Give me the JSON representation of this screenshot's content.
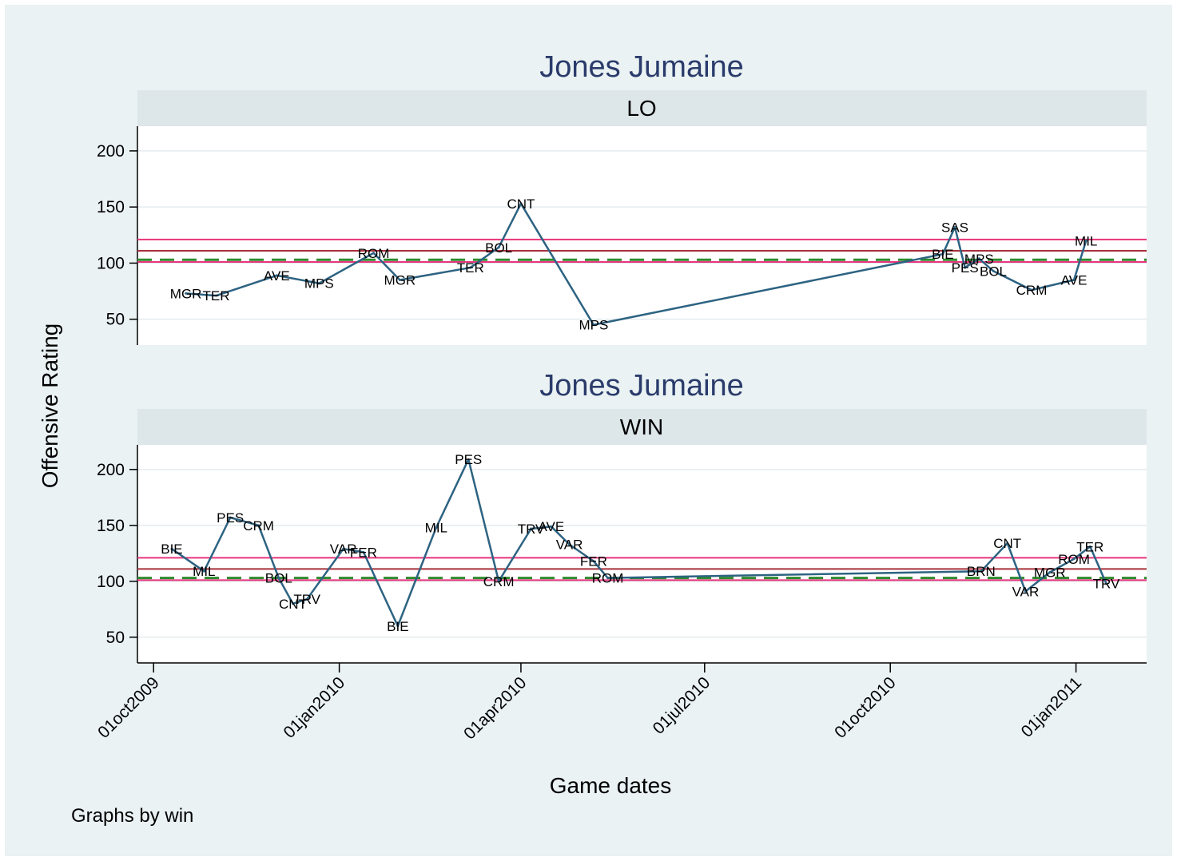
{
  "chart_data": {
    "type": "line",
    "ylabel": "Offensive Rating",
    "xlabel": "Game dates",
    "note": "Graphs by win",
    "x_ticks": [
      "01oct2009",
      "01jan2010",
      "01apr2010",
      "01jul2010",
      "01oct2010",
      "01jan2011"
    ],
    "x_range": [
      "2009-09-23",
      "2011-02-05"
    ],
    "ylim": [
      27,
      222
    ],
    "y_ticks": [
      50,
      100,
      150,
      200
    ],
    "grid": "horizontal",
    "colors": {
      "background": "#eaf2f3",
      "plot_bg": "#ffffff",
      "strip_bg": "#dde6e9",
      "title": "#2a3b6b",
      "line": "#2d6382",
      "mean_line": "#a8303c",
      "band_line": "#e8357c",
      "avg_line": "#2e8b2e"
    },
    "panels": [
      {
        "title": "Jones Jumaine",
        "strip": "LO",
        "reference_lines": {
          "mean": 111,
          "upper": 121,
          "lower": 101,
          "average": 103
        },
        "points": [
          {
            "date": "2009-10-17",
            "y": 73,
            "label": "MGR"
          },
          {
            "date": "2009-11-01",
            "y": 71,
            "label": "TER"
          },
          {
            "date": "2009-12-01",
            "y": 89,
            "label": "AVE"
          },
          {
            "date": "2009-12-22",
            "y": 82,
            "label": "MPS"
          },
          {
            "date": "2010-01-18",
            "y": 109,
            "label": "ROM"
          },
          {
            "date": "2010-01-31",
            "y": 85,
            "label": "MGR"
          },
          {
            "date": "2010-03-07",
            "y": 96,
            "label": "TER"
          },
          {
            "date": "2010-03-21",
            "y": 114,
            "label": "BOL"
          },
          {
            "date": "2010-04-01",
            "y": 153,
            "label": "CNT"
          },
          {
            "date": "2010-05-07",
            "y": 45,
            "label": "MPS"
          },
          {
            "date": "2010-10-27",
            "y": 108,
            "label": "BIE"
          },
          {
            "date": "2010-11-02",
            "y": 132,
            "label": "SAS"
          },
          {
            "date": "2010-11-07",
            "y": 96,
            "label": "PES"
          },
          {
            "date": "2010-11-14",
            "y": 104,
            "label": "MPS"
          },
          {
            "date": "2010-11-21",
            "y": 93,
            "label": "BOL"
          },
          {
            "date": "2010-12-10",
            "y": 76,
            "label": "CRM"
          },
          {
            "date": "2010-12-31",
            "y": 85,
            "label": "AVE"
          },
          {
            "date": "2011-01-06",
            "y": 120,
            "label": "MIL"
          }
        ]
      },
      {
        "title": "Jones Jumaine",
        "strip": "WIN",
        "reference_lines": {
          "mean": 111,
          "upper": 121,
          "lower": 101,
          "average": 103
        },
        "points": [
          {
            "date": "2009-10-10",
            "y": 129,
            "label": "BIE"
          },
          {
            "date": "2009-10-26",
            "y": 109,
            "label": "MIL"
          },
          {
            "date": "2009-11-08",
            "y": 157,
            "label": "PES"
          },
          {
            "date": "2009-11-22",
            "y": 150,
            "label": "CRM"
          },
          {
            "date": "2009-12-02",
            "y": 103,
            "label": "BOL"
          },
          {
            "date": "2009-12-09",
            "y": 80,
            "label": "CNT"
          },
          {
            "date": "2009-12-16",
            "y": 84,
            "label": "TRV"
          },
          {
            "date": "2010-01-03",
            "y": 129,
            "label": "VAR"
          },
          {
            "date": "2010-01-13",
            "y": 126,
            "label": "FER"
          },
          {
            "date": "2010-01-30",
            "y": 60,
            "label": "BIE"
          },
          {
            "date": "2010-02-18",
            "y": 148,
            "label": "MIL"
          },
          {
            "date": "2010-03-06",
            "y": 209,
            "label": "PES"
          },
          {
            "date": "2010-03-21",
            "y": 100,
            "label": "CRM"
          },
          {
            "date": "2010-04-06",
            "y": 147,
            "label": "TRV"
          },
          {
            "date": "2010-04-16",
            "y": 149,
            "label": "AVE"
          },
          {
            "date": "2010-04-25",
            "y": 133,
            "label": "VAR"
          },
          {
            "date": "2010-05-07",
            "y": 118,
            "label": "FER"
          },
          {
            "date": "2010-05-14",
            "y": 103,
            "label": "ROM"
          },
          {
            "date": "2010-11-15",
            "y": 109,
            "label": "BRN"
          },
          {
            "date": "2010-11-28",
            "y": 134,
            "label": "CNT"
          },
          {
            "date": "2010-12-07",
            "y": 91,
            "label": "VAR"
          },
          {
            "date": "2010-12-19",
            "y": 108,
            "label": "MGR"
          },
          {
            "date": "2010-12-31",
            "y": 120,
            "label": "ROM"
          },
          {
            "date": "2011-01-08",
            "y": 131,
            "label": "TER"
          },
          {
            "date": "2011-01-16",
            "y": 98,
            "label": "TRV"
          }
        ]
      }
    ]
  }
}
